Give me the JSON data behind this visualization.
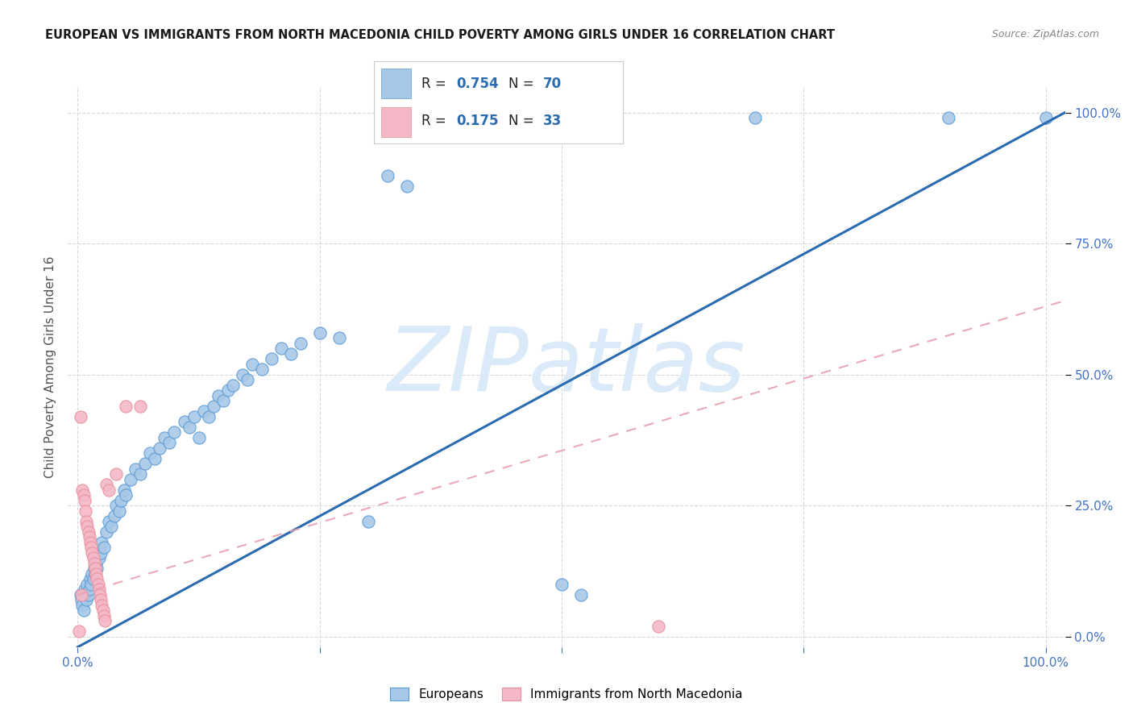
{
  "title": "EUROPEAN VS IMMIGRANTS FROM NORTH MACEDONIA CHILD POVERTY AMONG GIRLS UNDER 16 CORRELATION CHART",
  "source": "Source: ZipAtlas.com",
  "ylabel": "Child Poverty Among Girls Under 16",
  "xlim": [
    -0.01,
    1.02
  ],
  "ylim": [
    -0.02,
    1.05
  ],
  "xticks": [
    0,
    0.25,
    0.5,
    0.75,
    1.0
  ],
  "yticks": [
    0,
    0.25,
    0.5,
    0.75,
    1.0
  ],
  "xticklabels": [
    "0.0%",
    "",
    "",
    "",
    "100.0%"
  ],
  "yticklabels": [
    "0.0%",
    "25.0%",
    "50.0%",
    "75.0%",
    "100.0%"
  ],
  "legend1_R": "0.754",
  "legend1_N": "70",
  "legend2_R": "0.175",
  "legend2_N": "33",
  "blue_color": "#a8c8e8",
  "blue_color_dark": "#5b9bd5",
  "pink_color": "#f4b8c8",
  "pink_color_dark": "#e8909a",
  "line_blue": "#2b6cb0",
  "line_pink_dashed": "#e8a0b0",
  "watermark": "ZIPatlas",
  "watermark_color": "#daeaf8",
  "slope_blue": 1.0,
  "intercept_blue": -0.02,
  "slope_pink": 0.55,
  "intercept_pink": 0.08,
  "blue_scatter": [
    [
      0.003,
      0.08
    ],
    [
      0.004,
      0.07
    ],
    [
      0.005,
      0.06
    ],
    [
      0.006,
      0.05
    ],
    [
      0.007,
      0.09
    ],
    [
      0.008,
      0.08
    ],
    [
      0.009,
      0.07
    ],
    [
      0.01,
      0.1
    ],
    [
      0.011,
      0.08
    ],
    [
      0.012,
      0.09
    ],
    [
      0.013,
      0.11
    ],
    [
      0.014,
      0.1
    ],
    [
      0.015,
      0.12
    ],
    [
      0.016,
      0.11
    ],
    [
      0.017,
      0.13
    ],
    [
      0.018,
      0.12
    ],
    [
      0.019,
      0.14
    ],
    [
      0.02,
      0.13
    ],
    [
      0.022,
      0.15
    ],
    [
      0.024,
      0.16
    ],
    [
      0.025,
      0.18
    ],
    [
      0.027,
      0.17
    ],
    [
      0.03,
      0.2
    ],
    [
      0.032,
      0.22
    ],
    [
      0.035,
      0.21
    ],
    [
      0.038,
      0.23
    ],
    [
      0.04,
      0.25
    ],
    [
      0.043,
      0.24
    ],
    [
      0.045,
      0.26
    ],
    [
      0.048,
      0.28
    ],
    [
      0.05,
      0.27
    ],
    [
      0.055,
      0.3
    ],
    [
      0.06,
      0.32
    ],
    [
      0.065,
      0.31
    ],
    [
      0.07,
      0.33
    ],
    [
      0.075,
      0.35
    ],
    [
      0.08,
      0.34
    ],
    [
      0.085,
      0.36
    ],
    [
      0.09,
      0.38
    ],
    [
      0.095,
      0.37
    ],
    [
      0.1,
      0.39
    ],
    [
      0.11,
      0.41
    ],
    [
      0.115,
      0.4
    ],
    [
      0.12,
      0.42
    ],
    [
      0.125,
      0.38
    ],
    [
      0.13,
      0.43
    ],
    [
      0.135,
      0.42
    ],
    [
      0.14,
      0.44
    ],
    [
      0.145,
      0.46
    ],
    [
      0.15,
      0.45
    ],
    [
      0.155,
      0.47
    ],
    [
      0.16,
      0.48
    ],
    [
      0.17,
      0.5
    ],
    [
      0.175,
      0.49
    ],
    [
      0.18,
      0.52
    ],
    [
      0.19,
      0.51
    ],
    [
      0.2,
      0.53
    ],
    [
      0.21,
      0.55
    ],
    [
      0.22,
      0.54
    ],
    [
      0.23,
      0.56
    ],
    [
      0.25,
      0.58
    ],
    [
      0.27,
      0.57
    ],
    [
      0.3,
      0.22
    ],
    [
      0.32,
      0.88
    ],
    [
      0.34,
      0.86
    ],
    [
      0.5,
      0.1
    ],
    [
      0.52,
      0.08
    ],
    [
      0.7,
      0.99
    ],
    [
      0.9,
      0.99
    ],
    [
      1.0,
      0.99
    ]
  ],
  "pink_scatter": [
    [
      0.003,
      0.42
    ],
    [
      0.004,
      0.08
    ],
    [
      0.005,
      0.28
    ],
    [
      0.006,
      0.27
    ],
    [
      0.007,
      0.26
    ],
    [
      0.008,
      0.24
    ],
    [
      0.009,
      0.22
    ],
    [
      0.01,
      0.21
    ],
    [
      0.011,
      0.2
    ],
    [
      0.012,
      0.19
    ],
    [
      0.013,
      0.18
    ],
    [
      0.014,
      0.17
    ],
    [
      0.015,
      0.16
    ],
    [
      0.016,
      0.15
    ],
    [
      0.017,
      0.14
    ],
    [
      0.018,
      0.13
    ],
    [
      0.019,
      0.12
    ],
    [
      0.02,
      0.11
    ],
    [
      0.021,
      0.1
    ],
    [
      0.022,
      0.09
    ],
    [
      0.023,
      0.08
    ],
    [
      0.024,
      0.07
    ],
    [
      0.025,
      0.06
    ],
    [
      0.026,
      0.05
    ],
    [
      0.027,
      0.04
    ],
    [
      0.028,
      0.03
    ],
    [
      0.03,
      0.29
    ],
    [
      0.032,
      0.28
    ],
    [
      0.04,
      0.31
    ],
    [
      0.05,
      0.44
    ],
    [
      0.065,
      0.44
    ],
    [
      0.6,
      0.02
    ],
    [
      0.001,
      0.01
    ]
  ]
}
